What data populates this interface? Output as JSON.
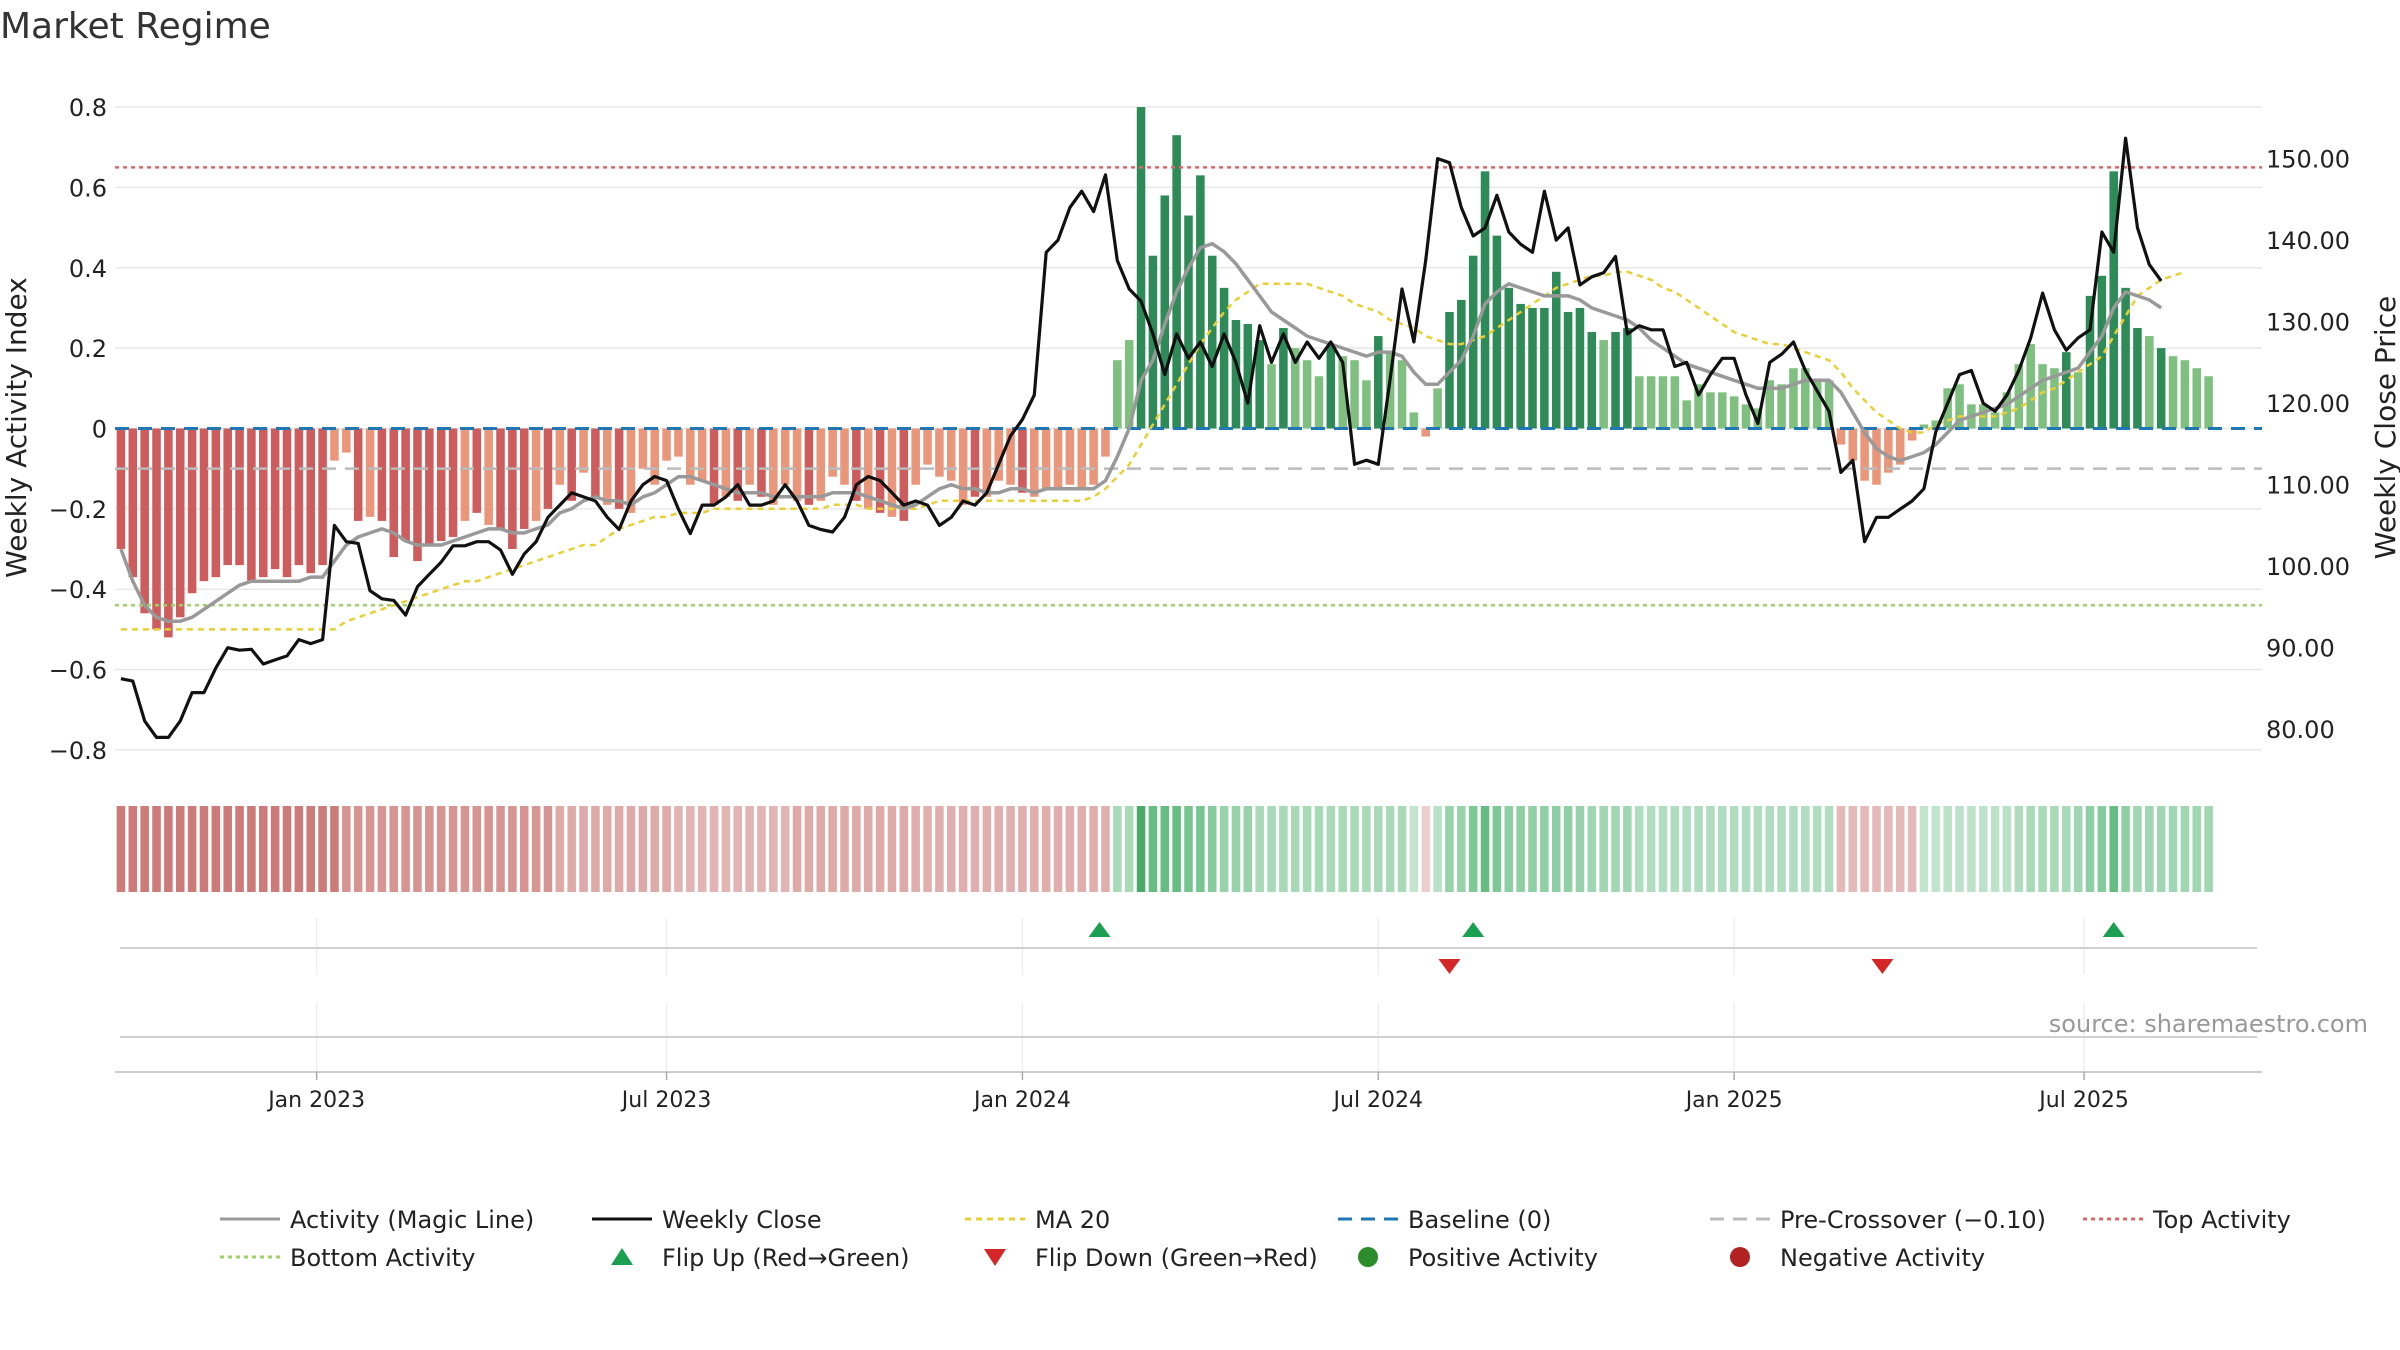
{
  "title": "Market Regime",
  "source": "source: sharemaestro.com",
  "colors": {
    "strong_neg": "#cd5c5c",
    "weak_neg": "#e9967a",
    "strong_pos": "#2e8b57",
    "weak_pos": "#7fbf7f",
    "magic_line": "#999999",
    "close": "#111111",
    "ma20": "#e8cf35",
    "baseline": "#1f77b4",
    "pre_crossover": "#bbbbbb",
    "top": "#e06666",
    "bottom": "#9ed16a",
    "flip_up": "#1aa050",
    "flip_down": "#d62728",
    "grid": "#e8e8e8",
    "axis": "#cccccc",
    "text": "#222222"
  },
  "chart_data": {
    "type": "bar",
    "left_axis": {
      "label": "Weekly Activity Index",
      "ylim": [
        -0.85,
        0.83
      ],
      "ticks": [
        "0.8",
        "0.6",
        "0.4",
        "0.2",
        "0",
        "−0.2",
        "−0.4",
        "−0.6",
        "−0.8"
      ],
      "tick_values": [
        0.8,
        0.6,
        0.4,
        0.2,
        0,
        -0.2,
        -0.4,
        -0.6,
        -0.8
      ]
    },
    "right_axis": {
      "label": "Weekly Close Price",
      "ylim": [
        75.0,
        157.8
      ],
      "ticks": [
        "150.00",
        "140.00",
        "130.00",
        "120.00",
        "110.00",
        "100.00",
        "90.00",
        "80.00"
      ],
      "tick_values": [
        150,
        140,
        130,
        120,
        110,
        100,
        90,
        80
      ]
    },
    "x_axis": {
      "ticks": [
        "Jan 2023",
        "Jul 2023",
        "Jan 2024",
        "Jul 2024",
        "Jan 2025",
        "Jul 2025"
      ],
      "tick_weeks": [
        16.5,
        46,
        76,
        106,
        136,
        165.5
      ]
    },
    "weeks": 181,
    "activity": [
      -0.3,
      -0.37,
      -0.46,
      -0.5,
      -0.52,
      -0.47,
      -0.41,
      -0.38,
      -0.37,
      -0.34,
      -0.34,
      -0.38,
      -0.37,
      -0.35,
      -0.37,
      -0.34,
      -0.36,
      -0.34,
      -0.08,
      -0.06,
      -0.23,
      -0.22,
      -0.23,
      -0.32,
      -0.28,
      -0.33,
      -0.29,
      -0.28,
      -0.27,
      -0.23,
      -0.21,
      -0.24,
      -0.25,
      -0.3,
      -0.25,
      -0.23,
      -0.2,
      -0.14,
      -0.18,
      -0.11,
      -0.17,
      -0.19,
      -0.2,
      -0.21,
      -0.1,
      -0.14,
      -0.08,
      -0.07,
      -0.14,
      -0.13,
      -0.19,
      -0.17,
      -0.18,
      -0.14,
      -0.17,
      -0.19,
      -0.14,
      -0.18,
      -0.19,
      -0.18,
      -0.12,
      -0.14,
      -0.18,
      -0.2,
      -0.21,
      -0.22,
      -0.23,
      -0.14,
      -0.09,
      -0.12,
      -0.13,
      -0.19,
      -0.17,
      -0.17,
      -0.13,
      -0.14,
      -0.16,
      -0.17,
      -0.15,
      -0.15,
      -0.14,
      -0.15,
      -0.14,
      -0.07,
      0.17,
      0.22,
      0.8,
      0.43,
      0.58,
      0.73,
      0.53,
      0.63,
      0.43,
      0.35,
      0.27,
      0.26,
      0.22,
      0.16,
      0.25,
      0.2,
      0.17,
      0.13,
      0.21,
      0.18,
      0.17,
      0.12,
      0.23,
      0.19,
      0.17,
      0.04,
      -0.02,
      0.1,
      0.29,
      0.32,
      0.43,
      0.64,
      0.48,
      0.35,
      0.31,
      0.3,
      0.3,
      0.39,
      0.29,
      0.3,
      0.24,
      0.22,
      0.24,
      0.25,
      0.13,
      0.13,
      0.13,
      0.13,
      0.07,
      0.11,
      0.09,
      0.09,
      0.08,
      0.06,
      0.05,
      0.12,
      0.11,
      0.15,
      0.15,
      0.12,
      0.12,
      -0.04,
      -0.08,
      -0.13,
      -0.14,
      -0.11,
      -0.09,
      -0.03,
      0.01,
      0.02,
      0.1,
      0.11,
      0.06,
      0.06,
      0.04,
      0.09,
      0.16,
      0.21,
      0.16,
      0.15,
      0.19,
      0.14,
      0.33,
      0.38,
      0.64,
      0.35,
      0.25,
      0.23,
      0.2,
      0.18,
      0.17,
      0.15,
      0.13
    ],
    "close": [
      86.2,
      85.9,
      81.0,
      79.0,
      79.0,
      81.0,
      84.5,
      84.5,
      87.5,
      90.0,
      89.7,
      89.8,
      88.0,
      88.5,
      89.0,
      91.0,
      90.5,
      91.0,
      105.0,
      103.0,
      102.8,
      97.0,
      96.0,
      95.8,
      94.0,
      97.5,
      99.0,
      100.5,
      102.5,
      102.5,
      103.0,
      103.0,
      102.0,
      99.0,
      101.5,
      103.0,
      106.0,
      107.5,
      109.0,
      108.5,
      108.0,
      106.0,
      104.5,
      108.0,
      110.0,
      111.0,
      110.5,
      107.0,
      104.0,
      107.5,
      107.5,
      108.5,
      110.0,
      107.5,
      107.5,
      108.0,
      110.0,
      108.0,
      105.0,
      104.5,
      104.2,
      106.0,
      110.0,
      111.0,
      110.5,
      109.0,
      107.5,
      108.0,
      107.5,
      105.0,
      106.0,
      108.0,
      107.5,
      109.0,
      112.5,
      116.0,
      118.0,
      121.0,
      138.5,
      140.0,
      144.0,
      146.0,
      143.5,
      148.0,
      137.5,
      134.0,
      132.5,
      128.5,
      123.5,
      128.5,
      125.5,
      127.5,
      124.5,
      128.5,
      125.0,
      120.0,
      129.5,
      125.0,
      128.5,
      125.0,
      127.5,
      125.5,
      127.5,
      125.0,
      112.5,
      113.0,
      112.5,
      123.0,
      134.0,
      127.5,
      137.5,
      150.0,
      149.5,
      144.0,
      140.5,
      141.5,
      145.5,
      141.0,
      139.5,
      138.5,
      146.0,
      140.0,
      141.5,
      134.5,
      135.5,
      136.0,
      138.0,
      128.5,
      129.5,
      129.0,
      129.0,
      124.5,
      125.0,
      121.0,
      123.5,
      125.5,
      125.5,
      121.0,
      117.5,
      125.0,
      126.0,
      127.5,
      124.0,
      121.5,
      119.0,
      111.5,
      113.0,
      103.0,
      106.0,
      106.0,
      107.0,
      108.0,
      109.5,
      116.5,
      120.0,
      123.5,
      124.0,
      120.0,
      119.0,
      121.0,
      124.0,
      128.0,
      133.5,
      129.0,
      126.5,
      128.0,
      129.0,
      141.0,
      138.5,
      152.5,
      141.5,
      137.0,
      135.0
    ],
    "magic_line": [
      -0.3,
      -0.38,
      -0.44,
      -0.47,
      -0.48,
      -0.48,
      -0.47,
      -0.45,
      -0.43,
      -0.41,
      -0.39,
      -0.38,
      -0.38,
      -0.38,
      -0.38,
      -0.38,
      -0.37,
      -0.37,
      -0.33,
      -0.29,
      -0.27,
      -0.26,
      -0.25,
      -0.26,
      -0.28,
      -0.29,
      -0.29,
      -0.29,
      -0.28,
      -0.27,
      -0.26,
      -0.25,
      -0.25,
      -0.26,
      -0.26,
      -0.25,
      -0.24,
      -0.21,
      -0.2,
      -0.18,
      -0.17,
      -0.18,
      -0.18,
      -0.19,
      -0.17,
      -0.16,
      -0.14,
      -0.12,
      -0.12,
      -0.13,
      -0.14,
      -0.15,
      -0.16,
      -0.16,
      -0.16,
      -0.17,
      -0.17,
      -0.17,
      -0.17,
      -0.17,
      -0.16,
      -0.16,
      -0.16,
      -0.17,
      -0.18,
      -0.19,
      -0.2,
      -0.19,
      -0.17,
      -0.15,
      -0.14,
      -0.15,
      -0.15,
      -0.16,
      -0.16,
      -0.15,
      -0.15,
      -0.16,
      -0.15,
      -0.15,
      -0.15,
      -0.15,
      -0.15,
      -0.13,
      -0.07,
      0.0,
      0.12,
      0.17,
      0.26,
      0.34,
      0.4,
      0.45,
      0.46,
      0.44,
      0.41,
      0.37,
      0.33,
      0.29,
      0.27,
      0.25,
      0.23,
      0.22,
      0.21,
      0.2,
      0.19,
      0.18,
      0.19,
      0.19,
      0.18,
      0.14,
      0.11,
      0.11,
      0.14,
      0.17,
      0.23,
      0.31,
      0.34,
      0.36,
      0.35,
      0.34,
      0.33,
      0.33,
      0.33,
      0.32,
      0.3,
      0.29,
      0.28,
      0.27,
      0.25,
      0.22,
      0.2,
      0.18,
      0.16,
      0.15,
      0.14,
      0.13,
      0.12,
      0.11,
      0.1,
      0.1,
      0.1,
      0.11,
      0.12,
      0.12,
      0.12,
      0.09,
      0.04,
      -0.01,
      -0.05,
      -0.07,
      -0.08,
      -0.07,
      -0.06,
      -0.04,
      -0.01,
      0.02,
      0.03,
      0.04,
      0.05,
      0.06,
      0.08,
      0.1,
      0.12,
      0.13,
      0.14,
      0.15,
      0.19,
      0.23,
      0.3,
      0.34,
      0.33,
      0.32,
      0.3
    ],
    "ma20": [
      -0.5,
      -0.5,
      -0.5,
      -0.5,
      -0.5,
      -0.5,
      -0.5,
      -0.5,
      -0.5,
      -0.5,
      -0.5,
      -0.5,
      -0.5,
      -0.5,
      -0.5,
      -0.5,
      -0.5,
      -0.5,
      -0.5,
      -0.48,
      -0.47,
      -0.46,
      -0.45,
      -0.44,
      -0.43,
      -0.42,
      -0.41,
      -0.4,
      -0.39,
      -0.38,
      -0.38,
      -0.37,
      -0.36,
      -0.35,
      -0.34,
      -0.33,
      -0.32,
      -0.31,
      -0.3,
      -0.29,
      -0.29,
      -0.27,
      -0.25,
      -0.24,
      -0.23,
      -0.22,
      -0.22,
      -0.21,
      -0.21,
      -0.21,
      -0.2,
      -0.2,
      -0.2,
      -0.2,
      -0.2,
      -0.2,
      -0.2,
      -0.2,
      -0.2,
      -0.2,
      -0.19,
      -0.19,
      -0.19,
      -0.2,
      -0.2,
      -0.2,
      -0.2,
      -0.2,
      -0.19,
      -0.18,
      -0.18,
      -0.18,
      -0.18,
      -0.18,
      -0.18,
      -0.18,
      -0.18,
      -0.18,
      -0.18,
      -0.18,
      -0.18,
      -0.18,
      -0.17,
      -0.15,
      -0.12,
      -0.09,
      -0.04,
      0.01,
      0.06,
      0.11,
      0.16,
      0.21,
      0.25,
      0.29,
      0.32,
      0.34,
      0.36,
      0.36,
      0.36,
      0.36,
      0.36,
      0.35,
      0.34,
      0.33,
      0.31,
      0.3,
      0.29,
      0.27,
      0.26,
      0.25,
      0.23,
      0.22,
      0.21,
      0.21,
      0.22,
      0.23,
      0.25,
      0.27,
      0.29,
      0.31,
      0.33,
      0.35,
      0.36,
      0.37,
      0.38,
      0.38,
      0.39,
      0.39,
      0.38,
      0.37,
      0.35,
      0.34,
      0.32,
      0.3,
      0.28,
      0.26,
      0.24,
      0.23,
      0.22,
      0.21,
      0.21,
      0.2,
      0.19,
      0.18,
      0.17,
      0.14,
      0.1,
      0.07,
      0.04,
      0.02,
      0.0,
      -0.01,
      -0.01,
      0.01,
      0.02,
      0.03,
      0.03,
      0.03,
      0.03,
      0.04,
      0.05,
      0.07,
      0.09,
      0.1,
      0.12,
      0.14,
      0.16,
      0.18,
      0.23,
      0.28,
      0.33,
      0.35,
      0.37,
      0.38,
      0.39
    ],
    "regime": [
      -0.34,
      -0.34,
      -0.34,
      -0.34,
      -0.34,
      -0.34,
      -0.34,
      -0.34,
      -0.34,
      -0.34,
      -0.34,
      -0.34,
      -0.34,
      -0.34,
      -0.34,
      -0.34,
      -0.34,
      -0.34,
      -0.34,
      -0.24,
      -0.24,
      -0.24,
      -0.24,
      -0.24,
      -0.24,
      -0.24,
      -0.24,
      -0.24,
      -0.24,
      -0.24,
      -0.24,
      -0.24,
      -0.24,
      -0.24,
      -0.24,
      -0.24,
      -0.24,
      -0.16,
      -0.16,
      -0.16,
      -0.16,
      -0.16,
      -0.16,
      -0.16,
      -0.16,
      -0.16,
      -0.16,
      -0.12,
      -0.12,
      -0.12,
      -0.12,
      -0.12,
      -0.12,
      -0.12,
      -0.12,
      -0.12,
      -0.12,
      -0.16,
      -0.16,
      -0.16,
      -0.16,
      -0.16,
      -0.16,
      -0.16,
      -0.16,
      -0.16,
      -0.16,
      -0.14,
      -0.14,
      -0.14,
      -0.14,
      -0.14,
      -0.14,
      -0.14,
      -0.14,
      -0.14,
      -0.14,
      -0.14,
      -0.14,
      -0.14,
      -0.14,
      -0.14,
      -0.14,
      -0.14,
      0.2,
      0.2,
      0.8,
      0.6,
      0.6,
      0.6,
      0.5,
      0.5,
      0.4,
      0.3,
      0.3,
      0.3,
      0.2,
      0.2,
      0.2,
      0.2,
      0.2,
      0.2,
      0.2,
      0.2,
      0.2,
      0.2,
      0.2,
      0.2,
      0.2,
      0.04,
      -0.02,
      0.1,
      0.3,
      0.3,
      0.45,
      0.6,
      0.45,
      0.35,
      0.35,
      0.35,
      0.35,
      0.35,
      0.35,
      0.3,
      0.25,
      0.25,
      0.25,
      0.25,
      0.15,
      0.15,
      0.15,
      0.15,
      0.15,
      0.15,
      0.15,
      0.15,
      0.15,
      0.15,
      0.15,
      0.15,
      0.15,
      0.15,
      0.15,
      0.15,
      0.15,
      -0.1,
      -0.1,
      -0.1,
      -0.1,
      -0.1,
      -0.1,
      -0.1,
      0.05,
      0.05,
      0.08,
      0.08,
      0.08,
      0.08,
      0.08,
      0.1,
      0.15,
      0.2,
      0.2,
      0.2,
      0.2,
      0.25,
      0.35,
      0.4,
      0.6,
      0.35,
      0.25,
      0.25,
      0.25,
      0.25,
      0.25,
      0.25,
      0.25
    ],
    "top_activity": 0.65,
    "bottom_activity": -0.44,
    "pre_crossover": -0.1,
    "baseline": 0,
    "flip_up_weeks": [
      82.5,
      114,
      168
    ],
    "flip_down_weeks": [
      112,
      148.5
    ],
    "legend_placement": "bottom",
    "legend": [
      {
        "label": "Activity (Magic Line)",
        "kind": "line",
        "color": "#999999",
        "dash": ""
      },
      {
        "label": "Weekly Close",
        "kind": "line",
        "color": "#111111",
        "dash": ""
      },
      {
        "label": "MA 20",
        "kind": "line",
        "color": "#e8cf35",
        "dash": "6,5"
      },
      {
        "label": "Baseline (0)",
        "kind": "line",
        "color": "#1f77b4",
        "dash": "14,9"
      },
      {
        "label": "Pre-Crossover (−0.10)",
        "kind": "line",
        "color": "#bbbbbb",
        "dash": "14,9"
      },
      {
        "label": "Top Activity",
        "kind": "line",
        "color": "#e06666",
        "dash": "4,4"
      },
      {
        "label": "Bottom Activity",
        "kind": "line",
        "color": "#9ed16a",
        "dash": "4,4"
      },
      {
        "label": "Flip Up (Red→Green)",
        "kind": "up",
        "color": "#1aa050",
        "dash": ""
      },
      {
        "label": "Flip Down (Green→Red)",
        "kind": "down",
        "color": "#d62728",
        "dash": ""
      },
      {
        "label": "Positive Activity",
        "kind": "dot",
        "color": "#2a8c2a",
        "dash": ""
      },
      {
        "label": "Negative Activity",
        "kind": "dot",
        "color": "#b22222",
        "dash": ""
      }
    ]
  }
}
